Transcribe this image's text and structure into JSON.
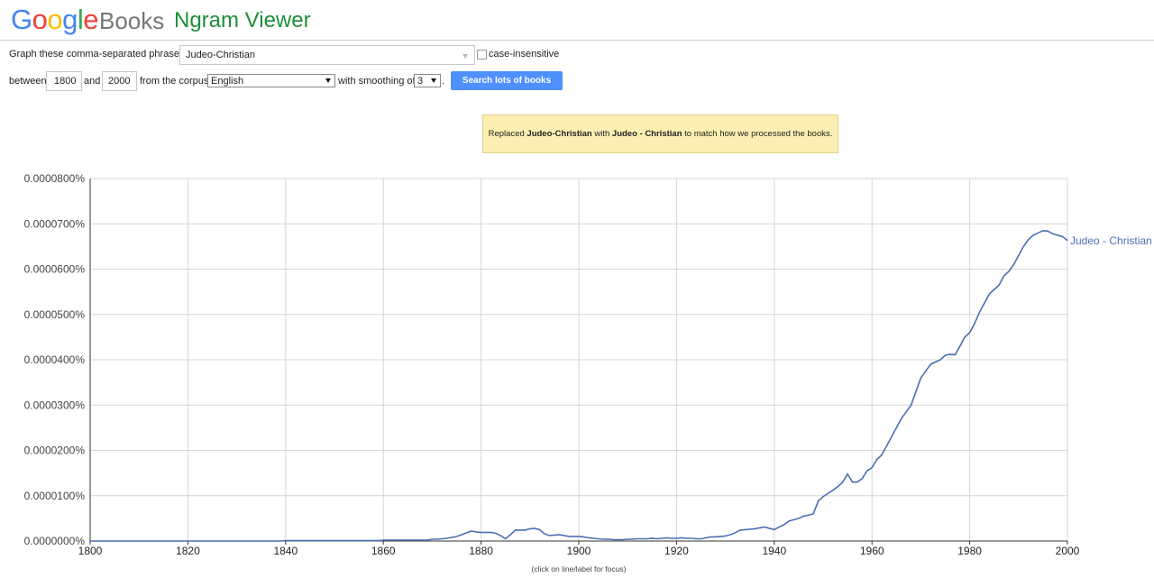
{
  "header": {
    "logo": "Google",
    "product": "Books",
    "title": "Ngram Viewer"
  },
  "form": {
    "phrases_label": "Graph these comma-separated phrases:",
    "phrases": "Judeo-Christian",
    "case_label": "case-insensitive",
    "between_label": "between",
    "start_year": 1800,
    "and_label": "and",
    "end_year": 2000,
    "corpus_label": "from the corpus",
    "corpus": "English",
    "smoothing_label": "with smoothing of",
    "smoothing": 3,
    "period": ".",
    "button": "Search lots of books"
  },
  "notice": {
    "parts": [
      "Replaced",
      "Judeo-Christian",
      "with",
      "Judeo - Christian",
      "to match how we processed the books."
    ]
  },
  "chart_data": {
    "type": "line",
    "note": "(click on line/label for focus)",
    "grid": true,
    "xlim": [
      1800,
      2000
    ],
    "xticks": [
      1800,
      1820,
      1840,
      1860,
      1880,
      1900,
      1920,
      1940,
      1960,
      1980,
      2000
    ],
    "ylim": [
      0,
      8e-05
    ],
    "yticks": [
      {
        "value": 0,
        "label": "0.0000000%"
      },
      {
        "value": 1e-05,
        "label": "0.0000100%"
      },
      {
        "value": 2e-05,
        "label": "0.0000200%"
      },
      {
        "value": 3e-05,
        "label": "0.0000300%"
      },
      {
        "value": 4e-05,
        "label": "0.0000400%"
      },
      {
        "value": 5e-05,
        "label": "0.0000500%"
      },
      {
        "value": 6e-05,
        "label": "0.0000600%"
      },
      {
        "value": 7e-05,
        "label": "0.0000700%"
      },
      {
        "value": 8e-05,
        "label": "0.0000800%"
      }
    ],
    "x": [
      1800,
      1801,
      1802,
      1803,
      1804,
      1805,
      1806,
      1807,
      1808,
      1809,
      1810,
      1811,
      1812,
      1813,
      1814,
      1815,
      1816,
      1817,
      1818,
      1819,
      1820,
      1821,
      1822,
      1823,
      1824,
      1825,
      1826,
      1827,
      1828,
      1829,
      1830,
      1831,
      1832,
      1833,
      1834,
      1835,
      1836,
      1837,
      1838,
      1839,
      1840,
      1841,
      1842,
      1843,
      1844,
      1845,
      1846,
      1847,
      1848,
      1849,
      1850,
      1851,
      1852,
      1853,
      1854,
      1855,
      1856,
      1857,
      1858,
      1859,
      1860,
      1861,
      1862,
      1863,
      1864,
      1865,
      1866,
      1867,
      1868,
      1869,
      1870,
      1871,
      1872,
      1873,
      1874,
      1875,
      1876,
      1877,
      1878,
      1879,
      1880,
      1881,
      1882,
      1883,
      1884,
      1885,
      1886,
      1887,
      1888,
      1889,
      1890,
      1891,
      1892,
      1893,
      1894,
      1895,
      1896,
      1897,
      1898,
      1899,
      1900,
      1901,
      1902,
      1903,
      1904,
      1905,
      1906,
      1907,
      1908,
      1909,
      1910,
      1911,
      1912,
      1913,
      1914,
      1915,
      1916,
      1917,
      1918,
      1919,
      1920,
      1921,
      1922,
      1923,
      1924,
      1925,
      1926,
      1927,
      1928,
      1929,
      1930,
      1931,
      1932,
      1933,
      1934,
      1935,
      1936,
      1937,
      1938,
      1939,
      1940,
      1941,
      1942,
      1943,
      1944,
      1945,
      1946,
      1947,
      1948,
      1949,
      1950,
      1951,
      1952,
      1953,
      1954,
      1955,
      1956,
      1957,
      1958,
      1959,
      1960,
      1961,
      1962,
      1963,
      1964,
      1965,
      1966,
      1967,
      1968,
      1969,
      1970,
      1971,
      1972,
      1973,
      1974,
      1975,
      1976,
      1977,
      1978,
      1979,
      1980,
      1981,
      1982,
      1983,
      1984,
      1985,
      1986,
      1987,
      1988,
      1989,
      1990,
      1991,
      1992,
      1993,
      1994,
      1995,
      1996,
      1997,
      1998,
      1999,
      2000
    ],
    "series": [
      {
        "name": "Judeo - Christian",
        "color": "#4a6fb5",
        "values": [
          0,
          0,
          0,
          0,
          0,
          0,
          0,
          0,
          0,
          0,
          0,
          0,
          0,
          0,
          0,
          0,
          0,
          0,
          0,
          0,
          0,
          0,
          0,
          0,
          0,
          0,
          0,
          0,
          0,
          0,
          0,
          0,
          0,
          0,
          0,
          0,
          0,
          0,
          0,
          0,
          1e-07,
          1e-07,
          1e-07,
          1e-07,
          1e-07,
          1e-07,
          1e-07,
          1e-07,
          1e-07,
          1e-07,
          1e-07,
          1e-07,
          1e-07,
          1e-07,
          1e-07,
          1e-07,
          1e-07,
          1e-07,
          1e-07,
          1e-07,
          2e-07,
          2e-07,
          2e-07,
          2e-07,
          2e-07,
          2e-07,
          2e-07,
          2e-07,
          2e-07,
          2e-07,
          4e-07,
          4e-07,
          5e-07,
          6e-07,
          8e-07,
          1e-06,
          1.4e-06,
          1.8e-06,
          2.2e-06,
          2e-06,
          1.9e-06,
          1.9e-06,
          1.9e-06,
          1.7e-06,
          1.2e-06,
          5e-07,
          1.4e-06,
          2.4e-06,
          2.4e-06,
          2.4e-06,
          2.7e-06,
          2.8e-06,
          2.5e-06,
          1.6e-06,
          1.2e-06,
          1.3e-06,
          1.4e-06,
          1.2e-06,
          1e-06,
          1e-06,
          1e-06,
          9e-07,
          7e-07,
          6e-07,
          5e-07,
          4e-07,
          4e-07,
          3e-07,
          3e-07,
          3e-07,
          4e-07,
          4e-07,
          5e-07,
          5e-07,
          5e-07,
          6e-07,
          5e-07,
          6e-07,
          7e-07,
          6e-07,
          6e-07,
          7e-07,
          6e-07,
          6e-07,
          5e-07,
          5e-07,
          7e-07,
          9e-07,
          9e-07,
          1e-06,
          1.1e-06,
          1.4e-06,
          1.8e-06,
          2.4e-06,
          2.5e-06,
          2.6e-06,
          2.7e-06,
          2.9e-06,
          3.1e-06,
          2.8e-06,
          2.5e-06,
          3.1e-06,
          3.6e-06,
          4.4e-06,
          4.7e-06,
          5e-06,
          5.5e-06,
          5.7e-06,
          6e-06,
          8.8e-06,
          9.8e-06,
          1.05e-05,
          1.12e-05,
          1.2e-05,
          1.3e-05,
          1.48e-05,
          1.3e-05,
          1.3e-05,
          1.38e-05,
          1.55e-05,
          1.62e-05,
          1.8e-05,
          1.9e-05,
          2.1e-05,
          2.3e-05,
          2.5e-05,
          2.7e-05,
          2.85e-05,
          3e-05,
          3.3e-05,
          3.6e-05,
          3.75e-05,
          3.9e-05,
          3.95e-05,
          4e-05,
          4.1e-05,
          4.12e-05,
          4.11e-05,
          4.3e-05,
          4.5e-05,
          4.6e-05,
          4.8e-05,
          5.05e-05,
          5.25e-05,
          5.45e-05,
          5.55e-05,
          5.65e-05,
          5.85e-05,
          5.95e-05,
          6.1e-05,
          6.3e-05,
          6.5e-05,
          6.65e-05,
          6.75e-05,
          6.8e-05,
          6.85e-05,
          6.84e-05,
          6.78e-05,
          6.75e-05,
          6.72e-05,
          6.63e-05
        ]
      }
    ]
  }
}
